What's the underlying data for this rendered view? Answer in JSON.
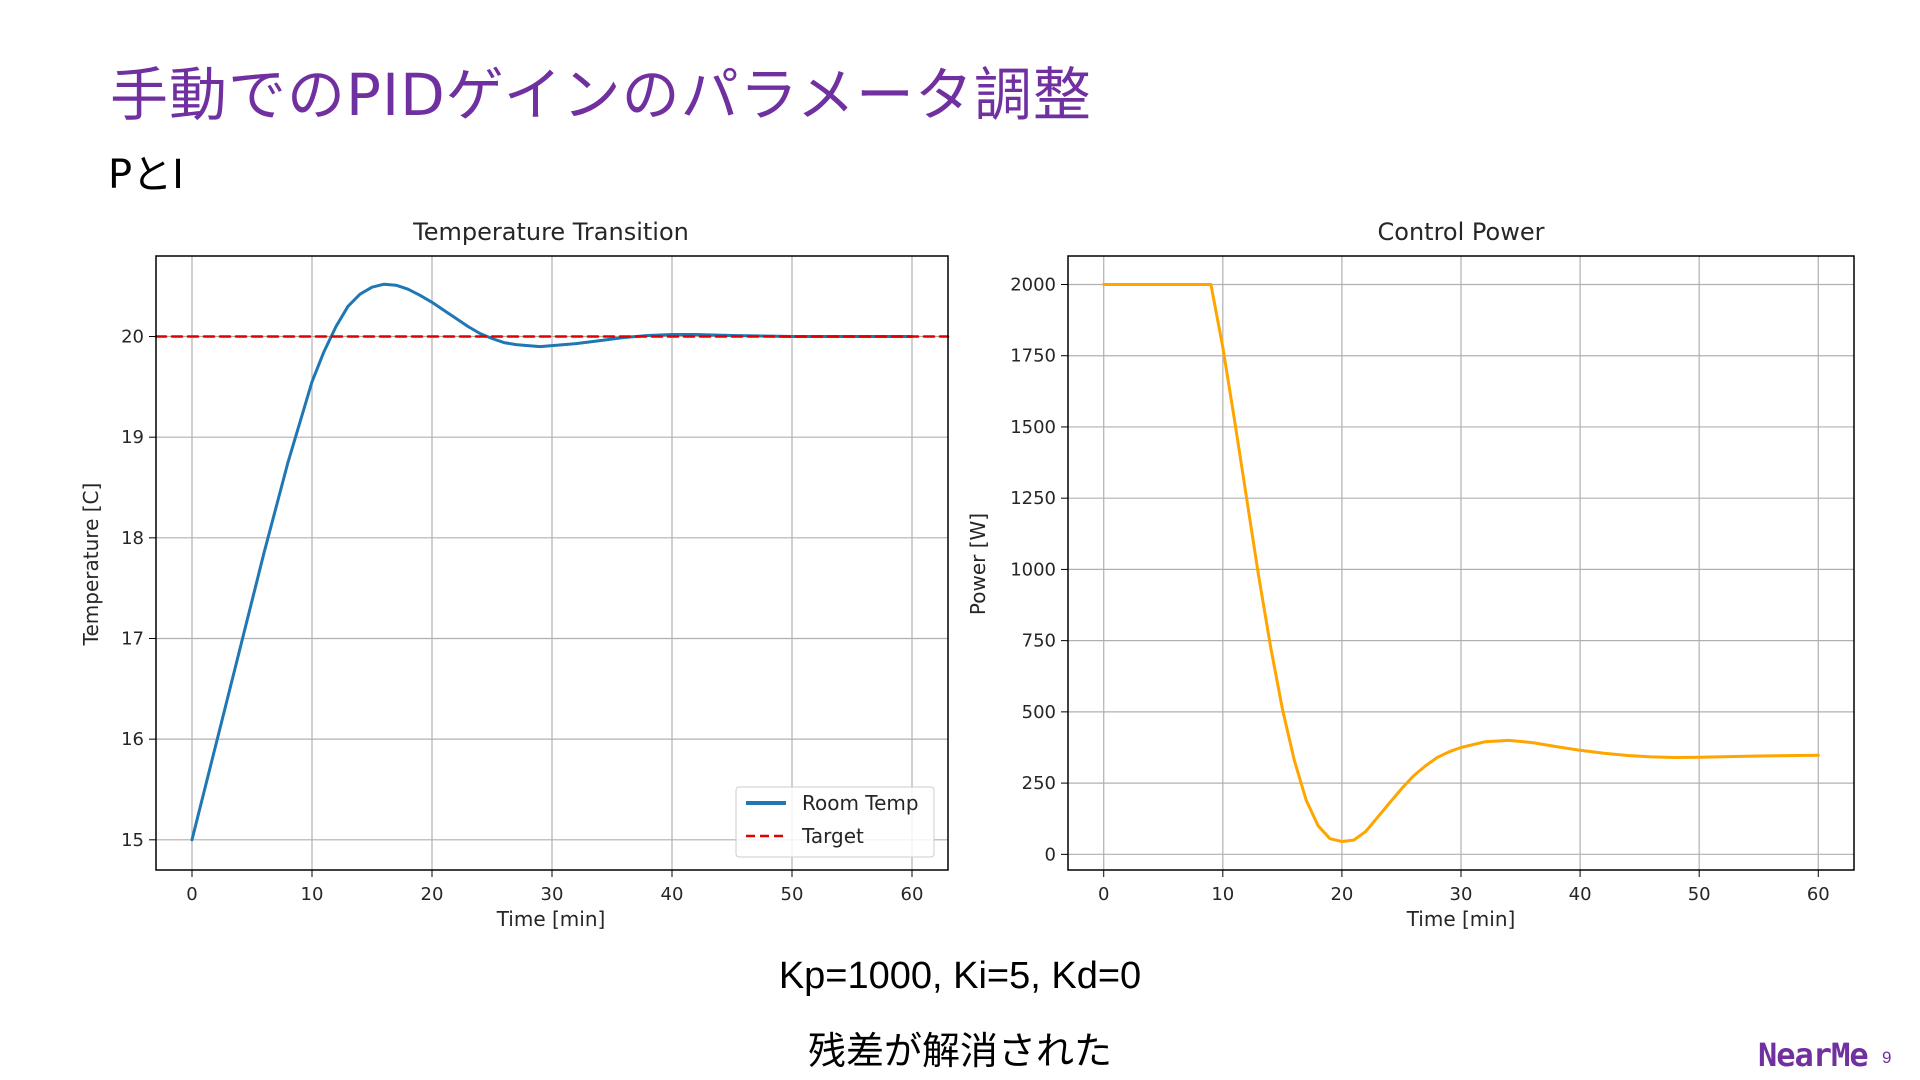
{
  "slide": {
    "title": "手動でのPIDゲインのパラメータ調整",
    "subtitle": "PとI",
    "params": "Kp=1000, Ki=5, Kd=0",
    "result": "残差が解消された",
    "brand": "NearMe",
    "page_number": "9",
    "accent_color": "#7030a0"
  },
  "chart_data": [
    {
      "type": "line",
      "title": "Temperature Transition",
      "xlabel": "Time [min]",
      "ylabel": "Temperature [C]",
      "xlim": [
        -3,
        63
      ],
      "ylim": [
        14.7,
        20.8
      ],
      "xticks": [
        0,
        10,
        20,
        30,
        40,
        50,
        60
      ],
      "yticks": [
        15,
        16,
        17,
        18,
        19,
        20
      ],
      "grid": true,
      "legend": {
        "position": "lower-right",
        "entries": [
          "Room Temp",
          "Target"
        ]
      },
      "series": [
        {
          "name": "Room Temp",
          "color": "#1f77b4",
          "style": "solid",
          "x": [
            0,
            2,
            4,
            6,
            8,
            10,
            11,
            12,
            13,
            14,
            15,
            16,
            17,
            18,
            19,
            20,
            21,
            22,
            23,
            24,
            25,
            26,
            27,
            28,
            29,
            30,
            32,
            34,
            36,
            38,
            40,
            42,
            45,
            50,
            55,
            60
          ],
          "y": [
            15.0,
            15.95,
            16.9,
            17.85,
            18.75,
            19.55,
            19.85,
            20.1,
            20.3,
            20.42,
            20.49,
            20.52,
            20.51,
            20.47,
            20.41,
            20.34,
            20.26,
            20.18,
            20.1,
            20.03,
            19.98,
            19.94,
            19.92,
            19.91,
            19.9,
            19.91,
            19.93,
            19.96,
            19.99,
            20.01,
            20.02,
            20.02,
            20.01,
            20.0,
            20.0,
            20.0
          ]
        },
        {
          "name": "Target",
          "color": "#e00000",
          "style": "dashed",
          "x": [
            -3,
            63
          ],
          "y": [
            20,
            20
          ]
        }
      ]
    },
    {
      "type": "line",
      "title": "Control Power",
      "xlabel": "Time [min]",
      "ylabel": "Power [W]",
      "xlim": [
        -3,
        63
      ],
      "ylim": [
        -55,
        2100
      ],
      "xticks": [
        0,
        10,
        20,
        30,
        40,
        50,
        60
      ],
      "yticks": [
        0,
        250,
        500,
        750,
        1000,
        1250,
        1500,
        1750,
        2000
      ],
      "grid": true,
      "series": [
        {
          "name": "Power",
          "color": "#ffa500",
          "style": "solid",
          "x": [
            0,
            9,
            10,
            11,
            12,
            13,
            14,
            15,
            16,
            17,
            18,
            19,
            20,
            21,
            22,
            23,
            24,
            25,
            26,
            27,
            28,
            29,
            30,
            32,
            34,
            36,
            38,
            40,
            42,
            44,
            46,
            48,
            50,
            55,
            60
          ],
          "y": [
            2000,
            2000,
            1780,
            1520,
            1250,
            980,
            730,
            510,
            330,
            190,
            100,
            55,
            45,
            50,
            80,
            130,
            180,
            230,
            275,
            310,
            340,
            360,
            375,
            395,
            400,
            392,
            378,
            365,
            355,
            347,
            342,
            340,
            341,
            345,
            348
          ]
        }
      ]
    }
  ]
}
